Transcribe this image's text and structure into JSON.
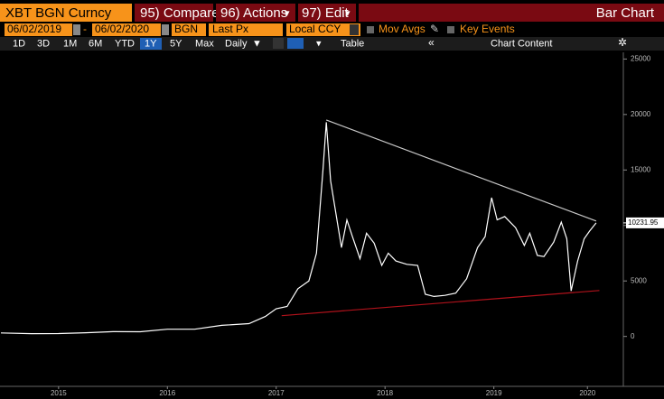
{
  "toolbar": {
    "security": "XBT BGN Curncy",
    "buttons": [
      "95) Compare",
      "96) Actions",
      "97) Edit"
    ],
    "view": "Bar Chart"
  },
  "settings": {
    "start_date": "06/02/2019",
    "end_date": "06/02/2020",
    "source": "BGN",
    "field": "Last Px",
    "currency": "Local CCY",
    "options": [
      "Mov Avgs",
      "Key Events"
    ]
  },
  "periods": {
    "items": [
      "1D",
      "3D",
      "1M",
      "6M",
      "YTD",
      "1Y",
      "5Y",
      "Max"
    ],
    "frequency": "Daily",
    "table": "Table",
    "content": "Chart Content"
  },
  "chart_data": {
    "type": "line",
    "x": [
      2014.97,
      2015.25,
      2015.5,
      2015.75,
      2016.0,
      2016.25,
      2016.5,
      2016.75,
      2017.0,
      2017.25,
      2017.4,
      2017.5,
      2017.6,
      2017.7,
      2017.8,
      2017.87,
      2017.93,
      2017.96,
      2018.0,
      2018.05,
      2018.1,
      2018.15,
      2018.2,
      2018.27,
      2018.33,
      2018.4,
      2018.47,
      2018.53,
      2018.6,
      2018.7,
      2018.8,
      2018.87,
      2018.95,
      2019.05,
      2019.15,
      2019.25,
      2019.35,
      2019.42,
      2019.48,
      2019.53,
      2019.6,
      2019.7,
      2019.78,
      2019.83,
      2019.9,
      2019.96,
      2020.05,
      2020.12,
      2020.17,
      2020.21,
      2020.27,
      2020.33,
      2020.38,
      2020.44
    ],
    "values": [
      320,
      250,
      260,
      330,
      430,
      420,
      650,
      650,
      1000,
      1150,
      1800,
      2500,
      2700,
      4300,
      5000,
      7500,
      15000,
      19300,
      14000,
      11000,
      8000,
      10500,
      9000,
      7000,
      9300,
      8400,
      6400,
      7500,
      6800,
      6500,
      6400,
      3800,
      3600,
      3700,
      3900,
      5200,
      8000,
      9000,
      12500,
      10500,
      10800,
      9800,
      8200,
      9300,
      7300,
      7200,
      8500,
      10300,
      8800,
      4100,
      6800,
      8800,
      9500,
      10231.95
    ],
    "color": "#ffffff",
    "trendlines": [
      {
        "x": [
          2017.96,
          2020.44
        ],
        "values": [
          19500,
          10400
        ],
        "color": "#c8c8c8"
      },
      {
        "x": [
          2017.55,
          2020.47
        ],
        "values": [
          1870,
          4140
        ],
        "color": "#b0121b"
      }
    ],
    "xlim": [
      2014.97,
      2020.69
    ],
    "ylim": [
      -4500,
      25600
    ],
    "xticks": [
      {
        "value": 2015.5,
        "label": "2015"
      },
      {
        "value": 2016.5,
        "label": "2016"
      },
      {
        "value": 2017.5,
        "label": "2017"
      },
      {
        "value": 2018.5,
        "label": "2018"
      },
      {
        "value": 2019.5,
        "label": "2019"
      },
      {
        "value": 2020.36,
        "label": "2020"
      }
    ],
    "yticks": [
      0,
      5000,
      10000,
      15000,
      20000,
      25000
    ]
  }
}
